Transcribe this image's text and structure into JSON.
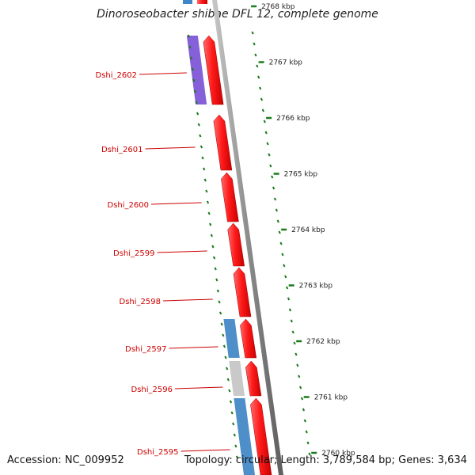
{
  "title": "Dinoroseobacter shibae DFL 12, complete genome",
  "accession_label": "Accession: NC_009952",
  "summary_label": "Topology: circular; Length: 3,789,584 bp; Genes: 3,634",
  "scale": {
    "labels": [
      "2768 kbp",
      "2767 kbp",
      "2766 kbp",
      "2765 kbp",
      "2764 kbp",
      "2763 kbp",
      "2762 kbp",
      "2761 kbp",
      "2760 kbp"
    ]
  },
  "genes": [
    {
      "label": "Dshi_2602",
      "strand": "+",
      "color": "#e8000b",
      "cog_color": "#7b52d6"
    },
    {
      "label": "Dshi_2601",
      "strand": "+",
      "color": "#e8000b",
      "cog_color": null
    },
    {
      "label": "Dshi_2600",
      "strand": "+",
      "color": "#e8000b",
      "cog_color": null
    },
    {
      "label": "Dshi_2599",
      "strand": "+",
      "color": "#e8000b",
      "cog_color": null
    },
    {
      "label": "Dshi_2598",
      "strand": "+",
      "color": "#e8000b",
      "cog_color": null
    },
    {
      "label": "Dshi_2597",
      "strand": "+",
      "color": "#e8000b",
      "cog_color": "#3f86c6"
    },
    {
      "label": "Dshi_2596",
      "strand": "+",
      "color": "#e8000b",
      "cog_color": "#c4c4c4"
    },
    {
      "label": "Dshi_2595",
      "strand": "+",
      "color": "#e8000b",
      "cog_color": "#3f86c6"
    }
  ],
  "colors": {
    "gene": "#e8000b",
    "label": "#cc0000",
    "backbone": "#8a8a8a",
    "tick": "#1b7a1b"
  }
}
